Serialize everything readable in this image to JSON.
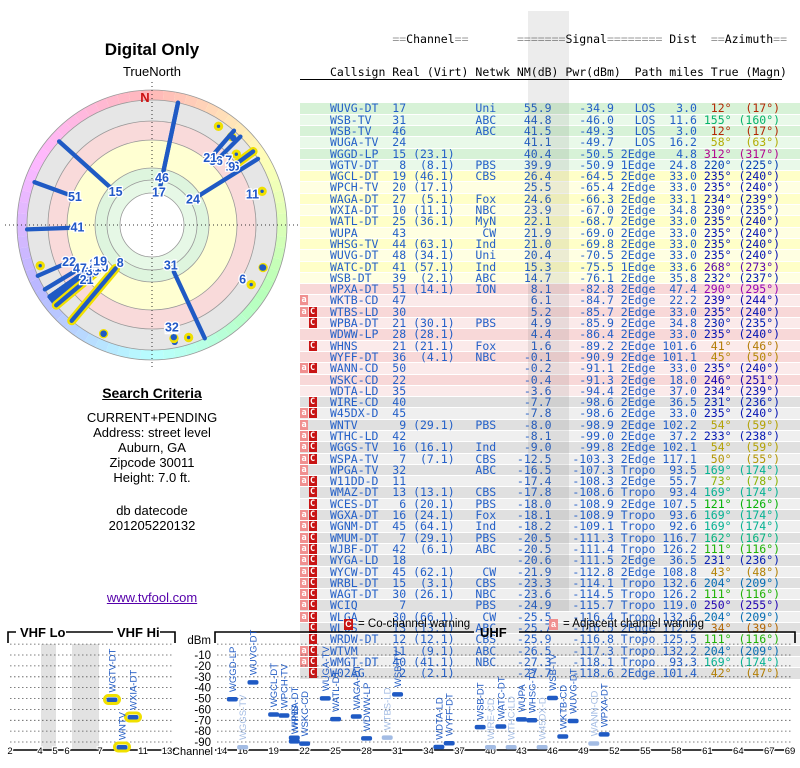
{
  "title": "Digital Only",
  "polar": {
    "subtitle": "TrueNorth",
    "north_label": "N"
  },
  "search_criteria": {
    "heading": "Search Criteria",
    "lines": [
      "CURRENT+PENDING",
      "Address: street level",
      "Auburn, GA",
      "Zipcode 30011",
      "Height: 7.0 ft."
    ],
    "db_label": "db datecode",
    "db_datecode": "201205220132",
    "link": "www.tvfool.com"
  },
  "table": {
    "group_header_line": "         ==Channel==       =======Signal======== Dist  ==Azimuth==",
    "column_header_line": "Callsign Real (Virt) Netwk NM(dB) Pwr(dBm)  Path miles True (Magn)"
  },
  "legend": {
    "co_symbol": "C",
    "co_text": "= Co-channel warning",
    "adj_symbol": "a",
    "adj_text": "= Adjacent channel warning"
  },
  "spectrum": {
    "band_vhf_lo": "VHF Lo",
    "band_vhf_hi": "VHF Hi",
    "band_uhf": "UHF",
    "y_label": "dBm",
    "x_label": "Channel",
    "y_ticks": [
      -10,
      -20,
      -30,
      -40,
      -50,
      -60,
      -70,
      -80,
      -90
    ],
    "vhf_ticks": [
      2,
      4,
      5,
      6,
      7,
      11,
      13
    ],
    "uhf_ticks": [
      14,
      16,
      19,
      22,
      25,
      28,
      31,
      34,
      37,
      40,
      43,
      46,
      49,
      52,
      55,
      58,
      61,
      64,
      67,
      69
    ]
  },
  "colors": {
    "station_blue": "#1f5ac4",
    "station_faded": "#a3bce4",
    "vhf_highlight": "#f0e000",
    "text_blue": "#2460c8",
    "north_red": "#cc1111",
    "warn_co_bg": "#c81414",
    "warn_adj_bg": "#f09090"
  },
  "stations": [
    {
      "callsign": "WUVG-DT",
      "real": 17,
      "virt": null,
      "net": "Uni",
      "nm": 55.9,
      "pwr": -34.9,
      "path": "LOS",
      "miles": 3.0,
      "az_true": 12,
      "az_magn": 17,
      "warn": "",
      "zone": "zg",
      "label": true,
      "fade": false
    },
    {
      "callsign": "WSB-TV",
      "real": 31,
      "virt": null,
      "net": "ABC",
      "nm": 44.8,
      "pwr": -46.0,
      "path": "LOS",
      "miles": 11.6,
      "az_true": 155,
      "az_magn": 160,
      "warn": "",
      "zone": "zg",
      "label": true,
      "fade": false
    },
    {
      "callsign": "WSB-TV",
      "real": 46,
      "virt": null,
      "net": "ABC",
      "nm": 41.5,
      "pwr": -49.3,
      "path": "LOS",
      "miles": 3.0,
      "az_true": 12,
      "az_magn": 17,
      "warn": "",
      "zone": "zg",
      "label": true,
      "fade": false
    },
    {
      "callsign": "WUGA-TV",
      "real": 24,
      "virt": null,
      "net": "",
      "nm": 41.1,
      "pwr": -49.7,
      "path": "LOS",
      "miles": 16.2,
      "az_true": 58,
      "az_magn": 63,
      "warn": "",
      "zone": "zg",
      "label": true,
      "fade": false
    },
    {
      "callsign": "WGGD-LP",
      "real": 15,
      "virt": 23.1,
      "net": "",
      "nm": 40.4,
      "pwr": -50.5,
      "path": "2Edge",
      "miles": 4.8,
      "az_true": 312,
      "az_magn": 317,
      "warn": "",
      "zone": "zg",
      "label": true,
      "fade": false
    },
    {
      "callsign": "WGTV-DT",
      "real": 8,
      "virt": 8.1,
      "net": "PBS",
      "nm": 39.9,
      "pwr": -50.9,
      "path": "1Edge",
      "miles": 24.8,
      "az_true": 220,
      "az_magn": 225,
      "warn": "",
      "zone": "zg",
      "label": true,
      "fade": false
    },
    {
      "callsign": "WGCL-DT",
      "real": 19,
      "virt": 46.1,
      "net": "CBS",
      "nm": 26.4,
      "pwr": -64.5,
      "path": "2Edge",
      "miles": 33.0,
      "az_true": 235,
      "az_magn": 240,
      "warn": "",
      "zone": "zy",
      "label": true,
      "fade": false
    },
    {
      "callsign": "WPCH-TV",
      "real": 20,
      "virt": 17.1,
      "net": "",
      "nm": 25.5,
      "pwr": -65.4,
      "path": "2Edge",
      "miles": 33.0,
      "az_true": 235,
      "az_magn": 240,
      "warn": "",
      "zone": "zy",
      "label": true,
      "fade": false
    },
    {
      "callsign": "WAGA-DT",
      "real": 27,
      "virt": 5.1,
      "net": "Fox",
      "nm": 24.6,
      "pwr": -66.3,
      "path": "2Edge",
      "miles": 33.1,
      "az_true": 234,
      "az_magn": 239,
      "warn": "",
      "zone": "zy",
      "label": true,
      "fade": false
    },
    {
      "callsign": "WXIA-DT",
      "real": 10,
      "virt": 11.1,
      "net": "NBC",
      "nm": 23.9,
      "pwr": -67.0,
      "path": "2Edge",
      "miles": 34.8,
      "az_true": 230,
      "az_magn": 235,
      "warn": "",
      "zone": "zy",
      "label": true,
      "fade": false
    },
    {
      "callsign": "WATL-DT",
      "real": 25,
      "virt": 36.1,
      "net": "MyN",
      "nm": 22.1,
      "pwr": -68.7,
      "path": "2Edge",
      "miles": 33.0,
      "az_true": 235,
      "az_magn": 240,
      "warn": "",
      "zone": "zy",
      "label": true,
      "fade": false
    },
    {
      "callsign": "WUPA",
      "real": 43,
      "virt": null,
      "net": "CW",
      "nm": 21.9,
      "pwr": -69.0,
      "path": "2Edge",
      "miles": 33.0,
      "az_true": 235,
      "az_magn": 240,
      "warn": "",
      "zone": "zy",
      "label": true,
      "fade": false
    },
    {
      "callsign": "WHSG-TV",
      "real": 44,
      "virt": 63.1,
      "net": "Ind",
      "nm": 21.0,
      "pwr": -69.8,
      "path": "2Edge",
      "miles": 33.0,
      "az_true": 235,
      "az_magn": 240,
      "warn": "",
      "zone": "zy",
      "label": true,
      "fade": false
    },
    {
      "callsign": "WUVG-DT",
      "real": 48,
      "virt": 34.1,
      "net": "Uni",
      "nm": 20.4,
      "pwr": -70.5,
      "path": "2Edge",
      "miles": 33.0,
      "az_true": 235,
      "az_magn": 240,
      "warn": "",
      "zone": "zy",
      "label": false,
      "fade": false
    },
    {
      "callsign": "WATC-DT",
      "real": 41,
      "virt": 57.1,
      "net": "Ind",
      "nm": 15.3,
      "pwr": -75.5,
      "path": "1Edge",
      "miles": 33.6,
      "az_true": 268,
      "az_magn": 273,
      "warn": "",
      "zone": "zy",
      "label": true,
      "fade": false
    },
    {
      "callsign": "WSB-DT",
      "real": 39,
      "virt": 2.1,
      "net": "ABC",
      "nm": 14.7,
      "pwr": -76.1,
      "path": "2Edge",
      "miles": 35.8,
      "az_true": 232,
      "az_magn": 237,
      "warn": "",
      "zone": "zy",
      "label": true,
      "fade": false
    },
    {
      "callsign": "WPXA-DT",
      "real": 51,
      "virt": 14.1,
      "net": "ION",
      "nm": 8.1,
      "pwr": -82.8,
      "path": "2Edge",
      "miles": 47.4,
      "az_true": 290,
      "az_magn": 295,
      "warn": "",
      "zone": "zp",
      "label": true,
      "fade": false
    },
    {
      "callsign": "WKTB-CD",
      "real": 47,
      "virt": null,
      "net": "",
      "nm": 6.1,
      "pwr": -84.7,
      "path": "2Edge",
      "miles": 22.2,
      "az_true": 239,
      "az_magn": 244,
      "warn": "a",
      "zone": "zp",
      "label": true,
      "fade": false
    },
    {
      "callsign": "WTBS-LD",
      "real": 30,
      "virt": null,
      "net": "",
      "nm": 5.2,
      "pwr": -85.7,
      "path": "2Edge",
      "miles": 33.0,
      "az_true": 235,
      "az_magn": 240,
      "warn": "aC",
      "zone": "zp",
      "label": false,
      "fade": true
    },
    {
      "callsign": "WPBA-DT",
      "real": 21,
      "virt": 30.1,
      "net": "PBS",
      "nm": 4.9,
      "pwr": -85.9,
      "path": "2Edge",
      "miles": 34.8,
      "az_true": 230,
      "az_magn": 235,
      "warn": "C",
      "zone": "zp",
      "label": true,
      "fade": false
    },
    {
      "callsign": "WDWW-LP",
      "real": 28,
      "virt": 28.1,
      "net": "",
      "nm": 4.4,
      "pwr": -86.4,
      "path": "2Edge",
      "miles": 33.0,
      "az_true": 235,
      "az_magn": 240,
      "warn": "",
      "zone": "zp",
      "label": false,
      "fade": false
    },
    {
      "callsign": "WHNS",
      "real": 21,
      "virt": 21.1,
      "net": "Fox",
      "nm": 1.6,
      "pwr": -89.2,
      "path": "2Edge",
      "miles": 101.6,
      "az_true": 41,
      "az_magn": 46,
      "warn": "C",
      "zone": "zp",
      "label": true,
      "fade": false
    },
    {
      "callsign": "WYFF-DT",
      "real": 36,
      "virt": 4.1,
      "net": "NBC",
      "nm": -0.1,
      "pwr": -90.9,
      "path": "2Edge",
      "miles": 101.1,
      "az_true": 45,
      "az_magn": 50,
      "warn": "",
      "zone": "zp",
      "label": true,
      "fade": false
    },
    {
      "callsign": "WANN-CD",
      "real": 50,
      "virt": null,
      "net": "",
      "nm": -0.2,
      "pwr": -91.1,
      "path": "2Edge",
      "miles": 33.0,
      "az_true": 235,
      "az_magn": 240,
      "warn": "aC",
      "zone": "zp",
      "label": false,
      "fade": true
    },
    {
      "callsign": "WSKC-CD",
      "real": 22,
      "virt": null,
      "net": "",
      "nm": -0.4,
      "pwr": -91.3,
      "path": "2Edge",
      "miles": 18.0,
      "az_true": 246,
      "az_magn": 251,
      "warn": "",
      "zone": "zp",
      "label": true,
      "fade": false
    },
    {
      "callsign": "WDTA-LD",
      "real": 35,
      "virt": null,
      "net": "",
      "nm": -3.6,
      "pwr": -94.4,
      "path": "2Edge",
      "miles": 37.0,
      "az_true": 234,
      "az_magn": 239,
      "warn": "",
      "zone": "zp",
      "label": false,
      "fade": false
    },
    {
      "callsign": "WIRE-CD",
      "real": 40,
      "virt": null,
      "net": "",
      "nm": -7.7,
      "pwr": -98.6,
      "path": "2Edge",
      "miles": 36.5,
      "az_true": 231,
      "az_magn": 236,
      "warn": "C",
      "zone": "ze",
      "label": false,
      "fade": true
    },
    {
      "callsign": "W45DX-D",
      "real": 45,
      "virt": null,
      "net": "",
      "nm": -7.8,
      "pwr": -98.6,
      "path": "2Edge",
      "miles": 33.0,
      "az_true": 235,
      "az_magn": 240,
      "warn": "aC",
      "zone": "ze",
      "label": false,
      "fade": true
    },
    {
      "callsign": "WNTV",
      "real": 9,
      "virt": 29.1,
      "net": "PBS",
      "nm": -8.0,
      "pwr": -98.9,
      "path": "2Edge",
      "miles": 102.2,
      "az_true": 54,
      "az_magn": 59,
      "warn": "a",
      "zone": "ze",
      "label": true,
      "fade": false
    },
    {
      "callsign": "WTHC-LD",
      "real": 42,
      "virt": null,
      "net": "",
      "nm": -8.1,
      "pwr": -99.0,
      "path": "2Edge",
      "miles": 37.2,
      "az_true": 233,
      "az_magn": 238,
      "warn": "aC",
      "zone": "ze",
      "label": false,
      "fade": true
    },
    {
      "callsign": "WGGS-TV",
      "real": 16,
      "virt": 16.1,
      "net": "Ind",
      "nm": -9.0,
      "pwr": -99.8,
      "path": "2Edge",
      "miles": 102.1,
      "az_true": 54,
      "az_magn": 59,
      "warn": "aC",
      "zone": "ze",
      "label": true,
      "fade": true
    },
    {
      "callsign": "WSPA-TV",
      "real": 7,
      "virt": 7.1,
      "net": "CBS",
      "nm": -12.5,
      "pwr": -103.3,
      "path": "2Edge",
      "miles": 117.1,
      "az_true": 50,
      "az_magn": 55,
      "warn": "aC",
      "zone": "ze",
      "label": true,
      "fade": false
    },
    {
      "callsign": "WPGA-TV",
      "real": 32,
      "virt": null,
      "net": "ABC",
      "nm": -16.5,
      "pwr": -107.3,
      "path": "Tropo",
      "miles": 93.5,
      "az_true": 169,
      "az_magn": 174,
      "warn": "a",
      "zone": "ze",
      "label": true,
      "fade": false
    },
    {
      "callsign": "W11DD-D",
      "real": 11,
      "virt": null,
      "net": "",
      "nm": -17.4,
      "pwr": -108.3,
      "path": "2Edge",
      "miles": 55.7,
      "az_true": 73,
      "az_magn": 78,
      "warn": "aC",
      "zone": "ze",
      "label": true,
      "fade": false
    },
    {
      "callsign": "WMAZ-DT",
      "real": 13,
      "virt": 13.1,
      "net": "CBS",
      "nm": -17.8,
      "pwr": -108.6,
      "path": "Tropo",
      "miles": 93.4,
      "az_true": 169,
      "az_magn": 174,
      "warn": "C",
      "zone": "ze",
      "label": true,
      "fade": false
    },
    {
      "callsign": "WCES-DT",
      "real": 6,
      "virt": 20.1,
      "net": "PBS",
      "nm": -18.0,
      "pwr": -108.9,
      "path": "2Edge",
      "miles": 107.5,
      "az_true": 121,
      "az_magn": 126,
      "warn": "C",
      "zone": "ze",
      "label": true,
      "fade": false
    },
    {
      "callsign": "WGXA-DT",
      "real": 16,
      "virt": 24.1,
      "net": "Fox",
      "nm": -18.1,
      "pwr": -108.9,
      "path": "Tropo",
      "miles": 93.6,
      "az_true": 169,
      "az_magn": 174,
      "warn": "aC",
      "zone": "ze",
      "label": true,
      "fade": false
    },
    {
      "callsign": "WGNM-DT",
      "real": 45,
      "virt": 64.1,
      "net": "Ind",
      "nm": -18.2,
      "pwr": -109.1,
      "path": "Tropo",
      "miles": 92.6,
      "az_true": 169,
      "az_magn": 174,
      "warn": "aC",
      "zone": "ze",
      "label": false,
      "fade": false
    },
    {
      "callsign": "WMUM-DT",
      "real": 7,
      "virt": 29.1,
      "net": "PBS",
      "nm": -20.5,
      "pwr": -111.3,
      "path": "Tropo",
      "miles": 116.7,
      "az_true": 162,
      "az_magn": 167,
      "warn": "aC",
      "zone": "ze",
      "label": false,
      "fade": false
    },
    {
      "callsign": "WJBF-DT",
      "real": 42,
      "virt": 6.1,
      "net": "ABC",
      "nm": -20.5,
      "pwr": -111.4,
      "path": "Tropo",
      "miles": 126.2,
      "az_true": 111,
      "az_magn": 116,
      "warn": "aC",
      "zone": "ze",
      "label": false,
      "fade": false
    },
    {
      "callsign": "WYGA-LD",
      "real": 18,
      "virt": null,
      "net": "",
      "nm": -20.6,
      "pwr": -111.5,
      "path": "2Edge",
      "miles": 36.5,
      "az_true": 231,
      "az_magn": 236,
      "warn": "aC",
      "zone": "ze",
      "label": false,
      "fade": false
    },
    {
      "callsign": "WYCW-DT",
      "real": 45,
      "virt": 62.1,
      "net": "CW",
      "nm": -21.9,
      "pwr": -112.8,
      "path": "2Edge",
      "miles": 108.8,
      "az_true": 43,
      "az_magn": 48,
      "warn": "aC",
      "zone": "ze",
      "label": false,
      "fade": false
    },
    {
      "callsign": "WRBL-DT",
      "real": 15,
      "virt": 3.1,
      "net": "CBS",
      "nm": -23.3,
      "pwr": -114.1,
      "path": "Tropo",
      "miles": 132.6,
      "az_true": 204,
      "az_magn": 209,
      "warn": "aC",
      "zone": "ze",
      "label": false,
      "fade": false
    },
    {
      "callsign": "WAGT-DT",
      "real": 30,
      "virt": 26.1,
      "net": "NBC",
      "nm": -23.6,
      "pwr": -114.5,
      "path": "Tropo",
      "miles": 126.2,
      "az_true": 111,
      "az_magn": 116,
      "warn": "aC",
      "zone": "ze",
      "label": false,
      "fade": false
    },
    {
      "callsign": "WCIQ",
      "real": 7,
      "virt": null,
      "net": "PBS",
      "nm": -24.9,
      "pwr": -115.7,
      "path": "Tropo",
      "miles": 119.0,
      "az_true": 250,
      "az_magn": 255,
      "warn": "aC",
      "zone": "ze",
      "label": false,
      "fade": false
    },
    {
      "callsign": "WLGA",
      "real": 30,
      "virt": 66.1,
      "net": "CW",
      "nm": -25.5,
      "pwr": -116.4,
      "path": "Tropo",
      "miles": 132.6,
      "az_true": 204,
      "az_magn": 209,
      "warn": "aC",
      "zone": "ze",
      "label": false,
      "fade": false
    },
    {
      "callsign": "WLOS",
      "real": 13,
      "virt": 13.1,
      "net": "ABC",
      "nm": -25.7,
      "pwr": -116.5,
      "path": "2Edge",
      "miles": 112.2,
      "az_true": 34,
      "az_magn": 39,
      "warn": "C",
      "zone": "ze",
      "label": false,
      "fade": false
    },
    {
      "callsign": "WRDW-DT",
      "real": 12,
      "virt": 12.1,
      "net": "CBS",
      "nm": -25.9,
      "pwr": -116.8,
      "path": "Tropo",
      "miles": 125.5,
      "az_true": 111,
      "az_magn": 116,
      "warn": "C",
      "zone": "ze",
      "label": false,
      "fade": false
    },
    {
      "callsign": "WTVM",
      "real": 11,
      "virt": 9.1,
      "net": "ABC",
      "nm": -26.5,
      "pwr": -117.3,
      "path": "Tropo",
      "miles": 132.2,
      "az_true": 204,
      "az_magn": 209,
      "warn": "aC",
      "zone": "ze",
      "label": false,
      "fade": false
    },
    {
      "callsign": "WMGT-DT",
      "real": 40,
      "virt": 41.1,
      "net": "NBC",
      "nm": -27.3,
      "pwr": -118.1,
      "path": "Tropo",
      "miles": 93.3,
      "az_true": 169,
      "az_magn": 174,
      "warn": "aC",
      "zone": "ze",
      "label": false,
      "fade": false
    },
    {
      "callsign": "W02AG",
      "real": 2,
      "virt": 2.1,
      "net": "",
      "nm": -27.7,
      "pwr": -118.6,
      "path": "2Edge",
      "miles": 101.4,
      "az_true": 42,
      "az_magn": 47,
      "warn": "C",
      "zone": "ze",
      "label": false,
      "fade": false
    }
  ]
}
